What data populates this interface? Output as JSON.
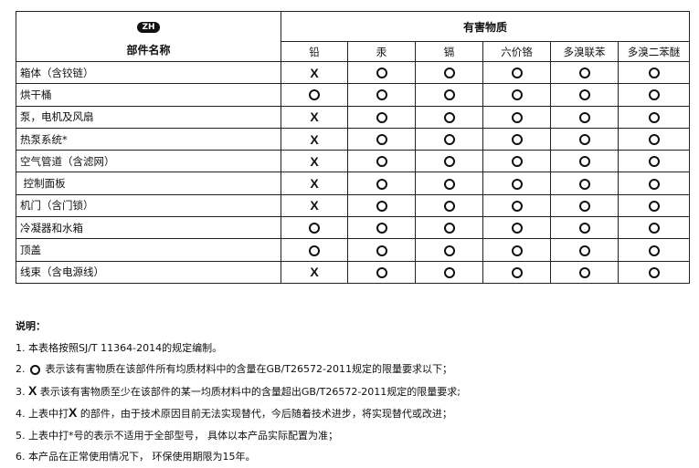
{
  "header": {
    "badge": "ZH",
    "part_name": "部件名称",
    "group": "有害物质",
    "substances": [
      "铅",
      "汞",
      "镉",
      "六价铬",
      "多溴联苯",
      "多溴二苯醚"
    ]
  },
  "symbols": {
    "x": "X",
    "o": "O"
  },
  "rows": [
    {
      "label": "箱体（含铰链）",
      "values": [
        "X",
        "O",
        "O",
        "O",
        "O",
        "O"
      ]
    },
    {
      "label": "烘干桶",
      "values": [
        "O",
        "O",
        "O",
        "O",
        "O",
        "O"
      ]
    },
    {
      "label": "泵，电机及风扇",
      "values": [
        "X",
        "O",
        "O",
        "O",
        "O",
        "O"
      ]
    },
    {
      "label": "热泵系统*",
      "values": [
        "X",
        "O",
        "O",
        "O",
        "O",
        "O"
      ]
    },
    {
      "label": "空气管道（含滤网）",
      "values": [
        "X",
        "O",
        "O",
        "O",
        "O",
        "O"
      ]
    },
    {
      "label": " 控制面板",
      "values": [
        "X",
        "O",
        "O",
        "O",
        "O",
        "O"
      ]
    },
    {
      "label": "机门（含门锁）",
      "values": [
        "X",
        "O",
        "O",
        "O",
        "O",
        "O"
      ]
    },
    {
      "label": "冷凝器和水箱",
      "values": [
        "O",
        "O",
        "O",
        "O",
        "O",
        "O"
      ]
    },
    {
      "label": "顶盖",
      "values": [
        "O",
        "O",
        "O",
        "O",
        "O",
        "O"
      ]
    },
    {
      "label": "线束（含电源线）",
      "values": [
        "X",
        "O",
        "O",
        "O",
        "O",
        "O"
      ]
    }
  ],
  "notes": {
    "title": "说明：",
    "n1": "1.  本表格按照SJ/T 11364-2014的规定编制。",
    "n2a": "2. ",
    "n2b": " 表示该有害物质在该部件所有均质材料中的含量在GB/T26572-2011规定的限量要求以下；",
    "n3a": "3. ",
    "n3b": " 表示该有害物质至少在该部件的某一均质材料中的含量超出GB/T26572-2011规定的限量要求;",
    "n4a": "4.  上表中打",
    "n4b": " 的部件，由于技术原因目前无法实现替代，今后随着技术进步，将实现替代或改进；",
    "n5": "5.  上表中打*号的表示不适用于全部型号， 具体以本产品实际配置为准；",
    "n6": "6.  本产品在正常使用情况下， 环保使用期限为15年。"
  }
}
